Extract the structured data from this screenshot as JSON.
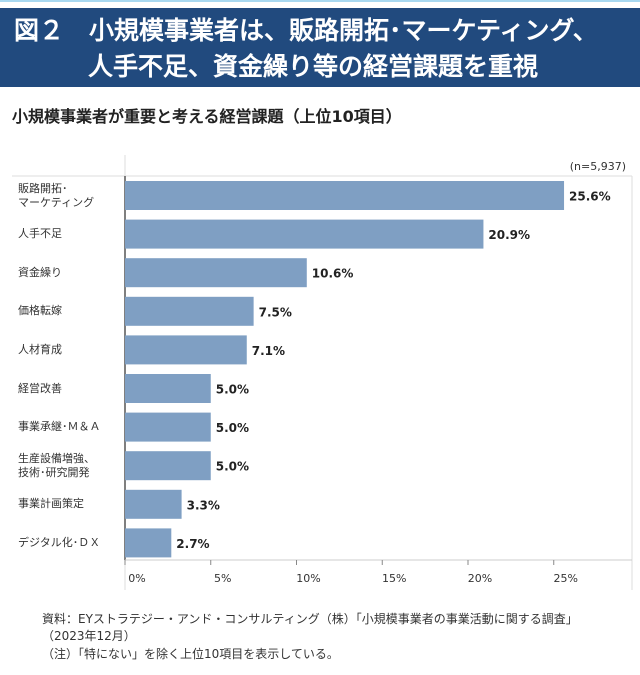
{
  "header": {
    "title_line1": "図２　小規模事業者は、販路開拓･マーケティング、",
    "title_line2": "人手不足、資金繰り等の経営課題を重視"
  },
  "subtitle": "小規模事業者が重要と考える経営課題（上位10項目）",
  "chart_data": {
    "type": "bar",
    "orientation": "horizontal",
    "categories": [
      "販路開拓･\nマーケティング",
      "人手不足",
      "資金繰り",
      "価格転嫁",
      "人材育成",
      "経営改善",
      "事業承継･Ｍ＆Ａ",
      "生産設備増強、\n技術･研究開発",
      "事業計画策定",
      "デジタル化･ＤＸ"
    ],
    "values": [
      25.6,
      20.9,
      10.6,
      7.5,
      7.1,
      5.0,
      5.0,
      5.0,
      3.3,
      2.7
    ],
    "data_labels": [
      "25.6%",
      "20.9%",
      "10.6%",
      "7.5%",
      "7.1%",
      "5.0%",
      "5.0%",
      "5.0%",
      "3.3%",
      "2.7%"
    ],
    "x_ticks": [
      "0%",
      "5%",
      "10%",
      "15%",
      "20%",
      "25%"
    ],
    "xlim": [
      0,
      29.5
    ],
    "annotation": "(n=5,937)",
    "bar_color": "#7f9fc3",
    "grid": false
  },
  "footnotes": {
    "source": "資料：EYストラテジー・アンド・コンサルティング（株）「小規模事業者の事業活動に関する調査」",
    "source_date": "（2023年12月）",
    "note": "（注）「特にない」を除く上位10項目を表示している。"
  }
}
